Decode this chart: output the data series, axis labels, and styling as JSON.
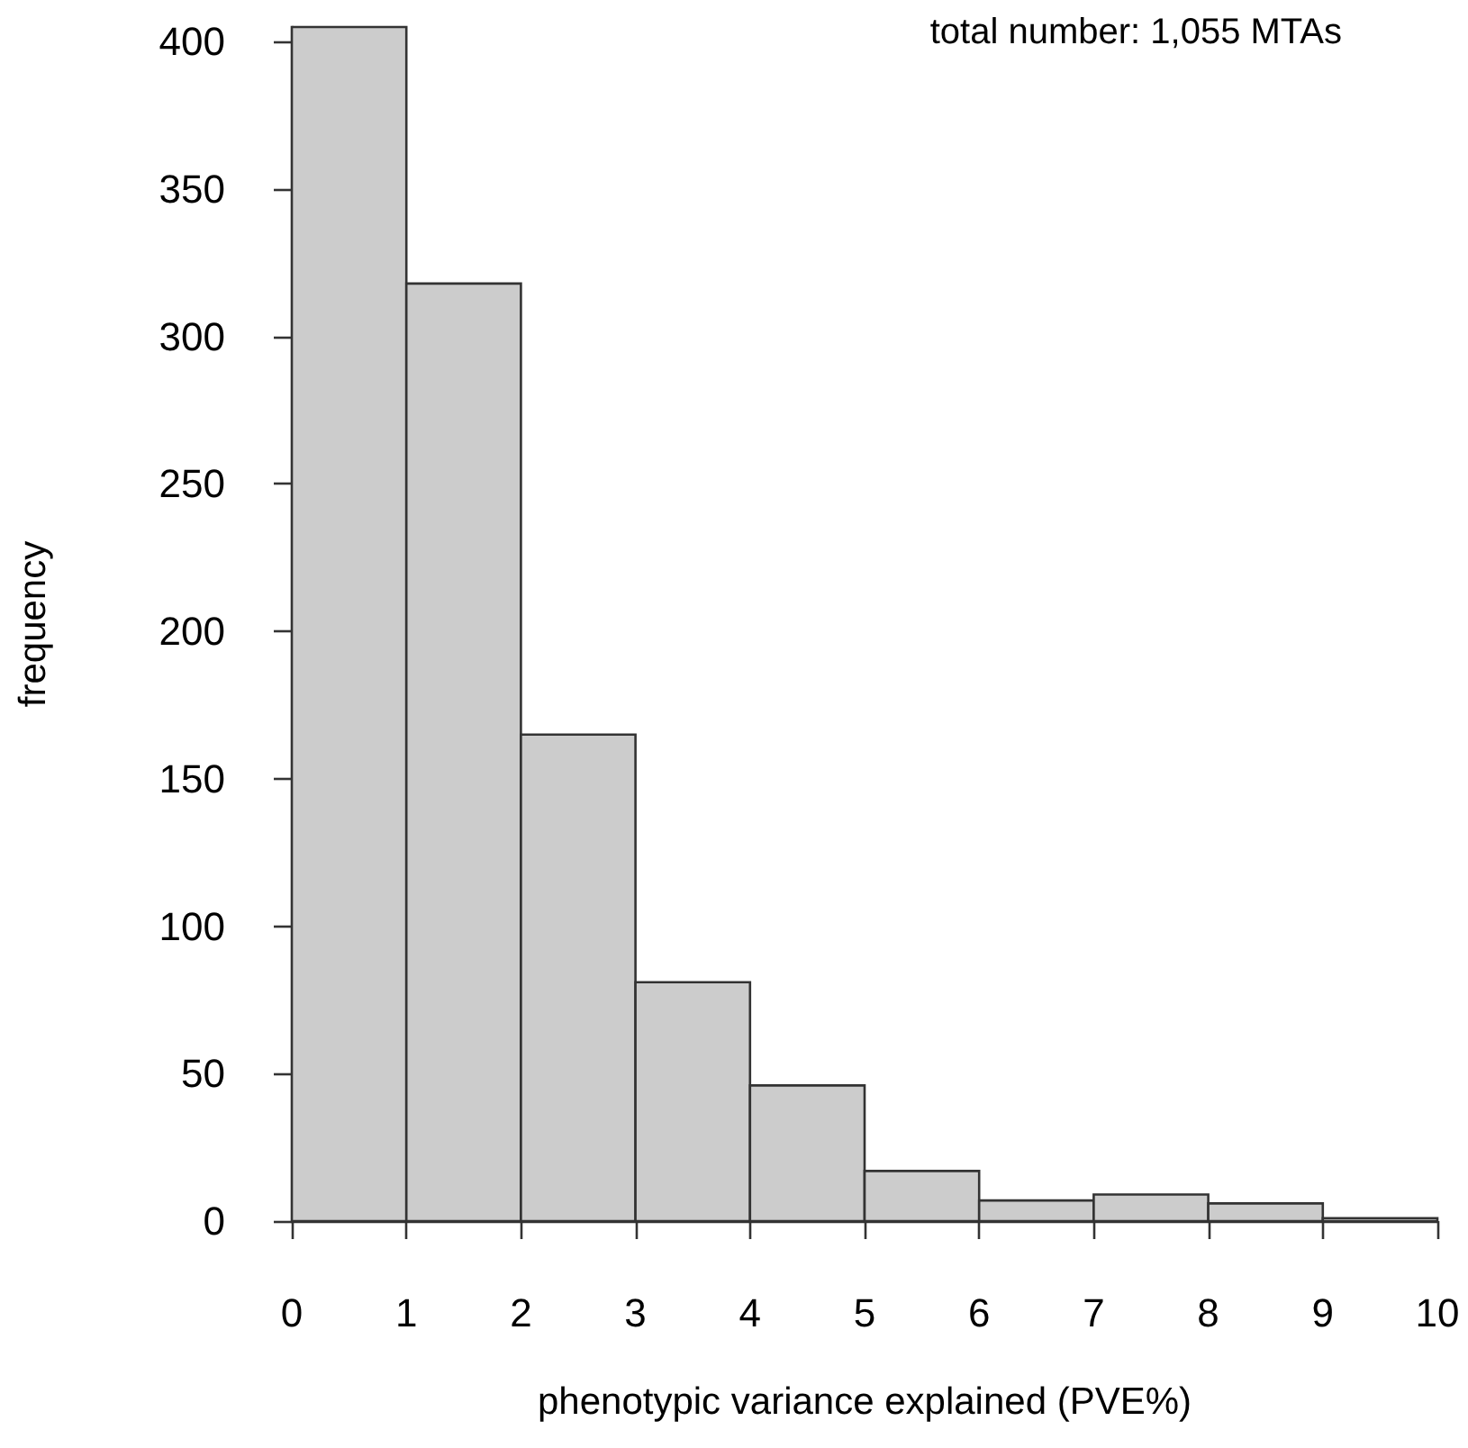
{
  "chart_data": {
    "type": "histogram",
    "bins": [
      0,
      1,
      2,
      3,
      4,
      5,
      6,
      7,
      8,
      9,
      10
    ],
    "values": [
      405,
      318,
      165,
      81,
      46,
      17,
      7,
      9,
      6,
      1
    ],
    "color": "#cccccc",
    "xlabel": "phenotypic variance explained (PVE%)",
    "ylabel": "frequency",
    "annotations": [
      "total number: 1,055 MTAs"
    ],
    "xlim": [
      0,
      10
    ],
    "xticks": [
      0,
      1,
      2,
      3,
      4,
      5,
      6,
      7,
      8,
      9,
      10
    ],
    "ylim": [
      0,
      405
    ],
    "yticks": [
      0,
      50,
      100,
      150,
      200,
      250,
      300,
      350,
      400
    ],
    "grid": false
  }
}
